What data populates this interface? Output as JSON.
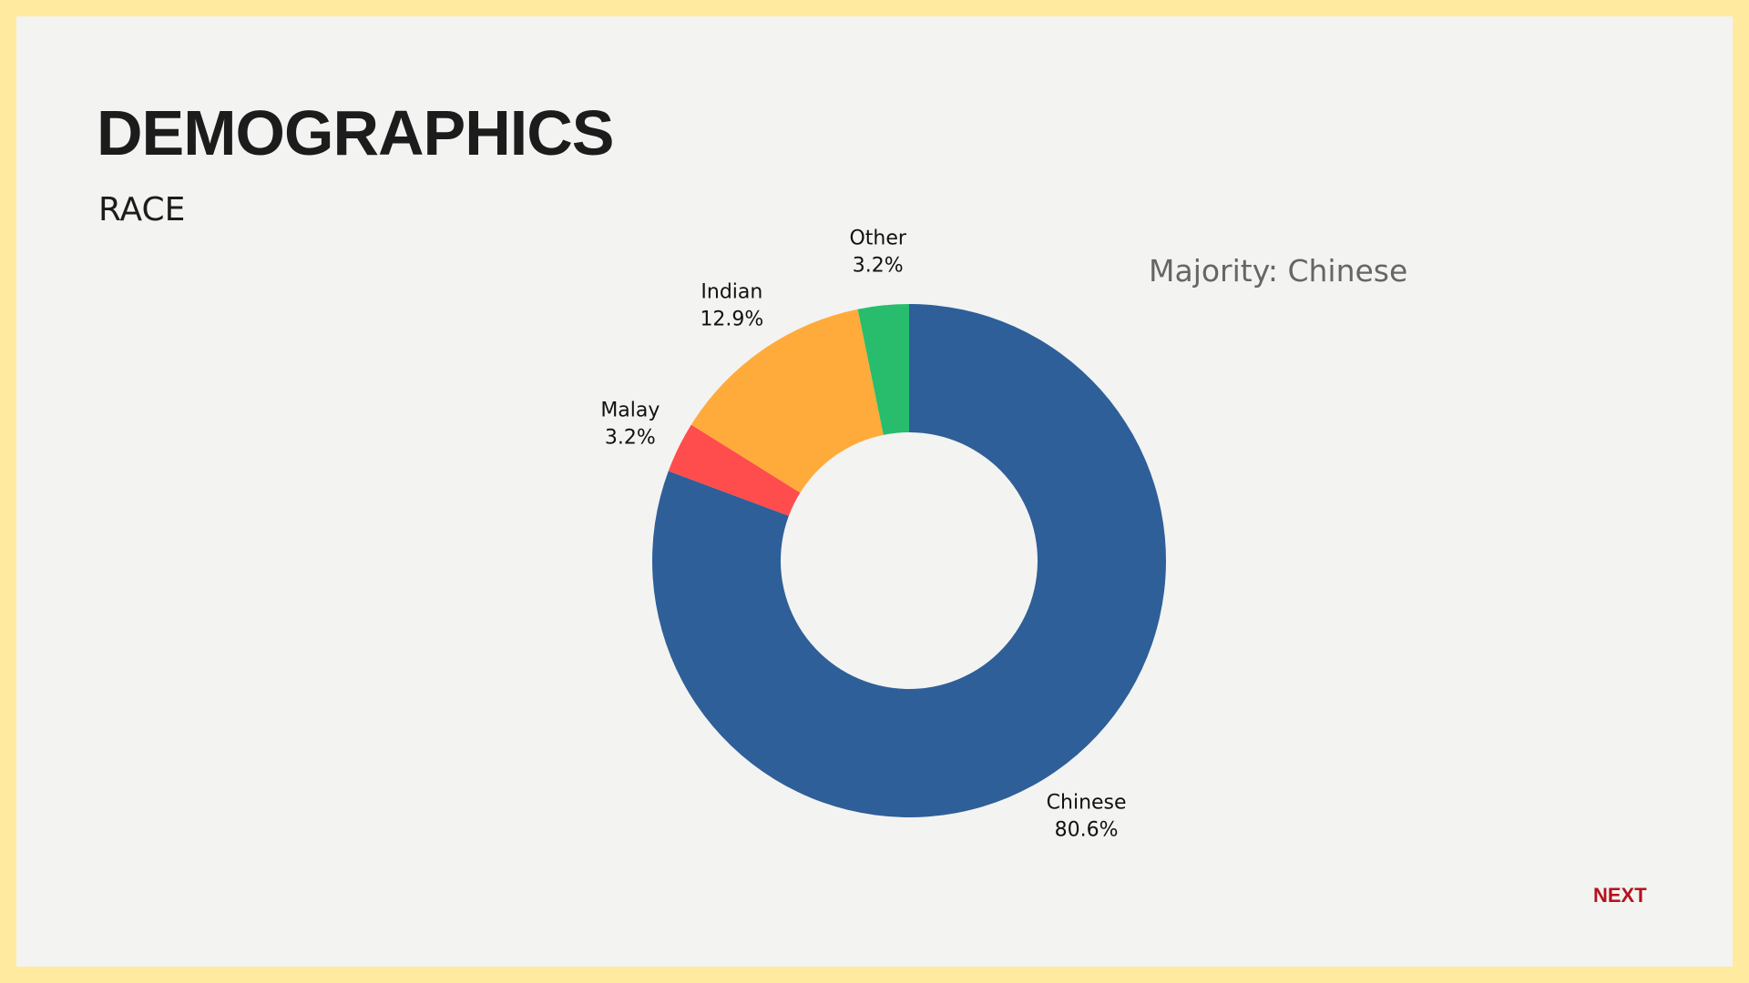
{
  "chart_data": {
    "type": "donut",
    "title": "DEMOGRAPHICS",
    "subtitle": "RACE",
    "annotation": "Majority: Chinese",
    "categories": [
      "Chinese",
      "Malay",
      "Indian",
      "Other"
    ],
    "values": [
      80.6,
      3.2,
      12.9,
      3.2
    ],
    "value_labels": [
      "80.6%",
      "3.2%",
      "12.9%",
      "3.2%"
    ],
    "colors": [
      "#2e5f98",
      "#ff4d4d",
      "#ffab3b",
      "#27bd6d"
    ]
  },
  "button": "NEXT"
}
